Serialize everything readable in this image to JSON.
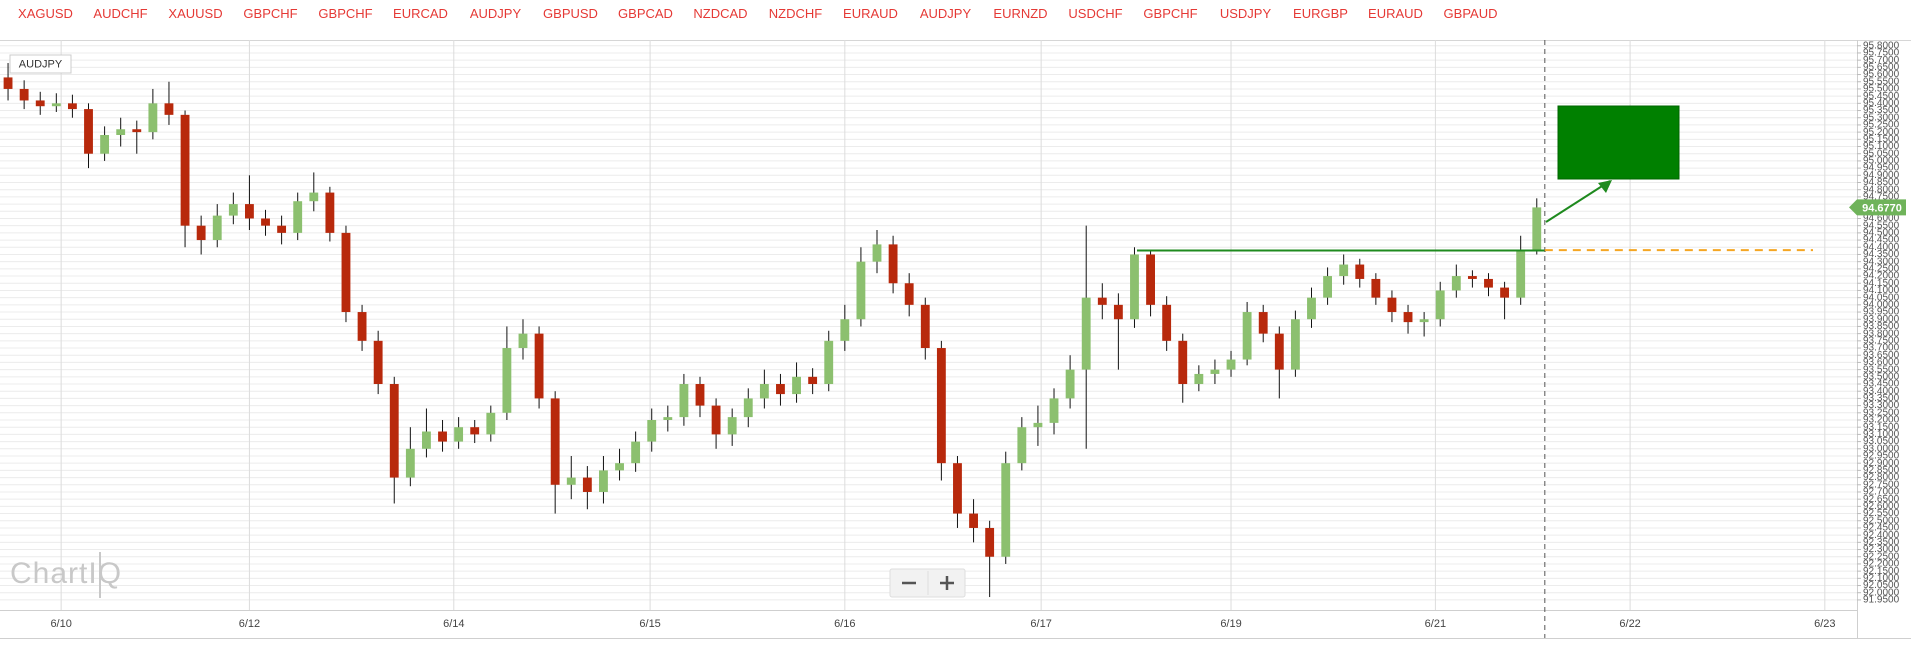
{
  "tabs": [
    "XAGUSD",
    "AUDCHF",
    "XAUUSD",
    "GBPCHF",
    "GBPCHF",
    "EURCAD",
    "AUDJPY",
    "GBPUSD",
    "GBPCAD",
    "NZDCAD",
    "NZDCHF",
    "EURAUD",
    "AUDJPY",
    "EURNZD",
    "USDCHF",
    "GBPCHF",
    "USDJPY",
    "EURGBP",
    "EURAUD",
    "GBPAUD"
  ],
  "symbol": "AUDJPY",
  "watermark": "ChartIQ",
  "chart_data": {
    "type": "candlestick",
    "up_color": "#8cc06f",
    "down_color": "#b8290c",
    "wick_color": "#111111",
    "open": [
      95.58,
      95.5,
      95.42,
      95.38,
      95.4,
      95.36,
      95.05,
      95.18,
      95.22,
      95.2,
      95.4,
      95.32,
      94.55,
      94.45,
      94.62,
      94.7,
      94.6,
      94.55,
      94.5,
      94.72,
      94.78,
      94.5,
      93.95,
      93.75,
      93.45,
      92.8,
      93.0,
      93.12,
      93.05,
      93.15,
      93.1,
      93.25,
      93.7,
      93.8,
      93.35,
      92.75,
      92.8,
      92.7,
      92.85,
      92.9,
      93.05,
      93.2,
      93.22,
      93.45,
      93.3,
      93.1,
      93.22,
      93.35,
      93.45,
      93.38,
      93.5,
      93.45,
      93.75,
      93.9,
      94.3,
      94.42,
      94.15,
      94.0,
      93.7,
      92.9,
      92.55,
      92.45,
      92.25,
      92.9,
      93.15,
      93.18,
      93.35,
      93.55,
      94.05,
      94.0,
      93.9,
      94.35,
      94.0,
      93.75,
      93.45,
      93.52,
      93.55,
      93.62,
      93.95,
      93.8,
      93.55,
      93.9,
      94.05,
      94.2,
      94.28,
      94.18,
      94.05,
      93.95,
      93.88,
      93.9,
      94.1,
      94.2,
      94.18,
      94.12,
      94.05,
      94.38
    ],
    "high": [
      95.68,
      95.56,
      95.48,
      95.47,
      95.46,
      95.4,
      95.24,
      95.3,
      95.28,
      95.5,
      95.55,
      95.35,
      94.62,
      94.7,
      94.78,
      94.9,
      94.66,
      94.62,
      94.78,
      94.92,
      94.82,
      94.55,
      94.0,
      93.82,
      93.5,
      93.15,
      93.28,
      93.2,
      93.22,
      93.2,
      93.3,
      93.85,
      93.9,
      93.85,
      93.4,
      92.95,
      92.88,
      92.95,
      93.0,
      93.12,
      93.28,
      93.3,
      93.52,
      93.5,
      93.35,
      93.28,
      93.42,
      93.55,
      93.52,
      93.6,
      93.56,
      93.82,
      94.0,
      94.4,
      94.52,
      94.48,
      94.22,
      94.05,
      93.75,
      92.95,
      92.65,
      92.5,
      92.98,
      93.22,
      93.3,
      93.42,
      93.65,
      94.55,
      94.15,
      94.08,
      94.4,
      94.38,
      94.06,
      93.8,
      93.58,
      93.62,
      93.68,
      94.02,
      94.0,
      93.85,
      93.96,
      94.12,
      94.26,
      94.35,
      94.32,
      94.22,
      94.1,
      94.0,
      93.95,
      94.16,
      94.28,
      94.24,
      94.22,
      94.16,
      94.48,
      94.74
    ],
    "low": [
      95.42,
      95.36,
      95.32,
      95.34,
      95.3,
      94.95,
      95.0,
      95.1,
      95.05,
      95.15,
      95.25,
      94.4,
      94.35,
      94.4,
      94.56,
      94.52,
      94.48,
      94.42,
      94.45,
      94.65,
      94.44,
      93.88,
      93.68,
      93.38,
      92.62,
      92.74,
      92.94,
      92.98,
      93.0,
      93.04,
      93.05,
      93.2,
      93.62,
      93.28,
      92.55,
      92.65,
      92.58,
      92.62,
      92.78,
      92.84,
      92.98,
      93.12,
      93.16,
      93.22,
      93.0,
      93.02,
      93.15,
      93.28,
      93.3,
      93.32,
      93.38,
      93.4,
      93.68,
      93.85,
      94.22,
      94.08,
      93.92,
      93.62,
      92.78,
      92.45,
      92.35,
      91.97,
      92.2,
      92.85,
      93.02,
      93.1,
      93.28,
      93.0,
      93.9,
      93.55,
      93.84,
      93.92,
      93.68,
      93.32,
      93.4,
      93.45,
      93.5,
      93.58,
      93.74,
      93.35,
      93.5,
      93.84,
      94.0,
      94.14,
      94.12,
      94.0,
      93.88,
      93.8,
      93.78,
      93.85,
      94.05,
      94.12,
      94.06,
      93.9,
      94.0,
      94.35
    ],
    "close": [
      95.5,
      95.42,
      95.38,
      95.4,
      95.36,
      95.05,
      95.18,
      95.22,
      95.2,
      95.4,
      95.32,
      94.55,
      94.45,
      94.62,
      94.7,
      94.6,
      94.55,
      94.5,
      94.72,
      94.78,
      94.5,
      93.95,
      93.75,
      93.45,
      92.8,
      93.0,
      93.12,
      93.05,
      93.15,
      93.1,
      93.25,
      93.7,
      93.8,
      93.35,
      92.75,
      92.8,
      92.7,
      92.85,
      92.9,
      93.05,
      93.2,
      93.22,
      93.45,
      93.3,
      93.1,
      93.22,
      93.35,
      93.45,
      93.38,
      93.5,
      93.45,
      93.75,
      93.9,
      94.3,
      94.42,
      94.15,
      94.0,
      93.7,
      92.9,
      92.55,
      92.45,
      92.25,
      92.9,
      93.15,
      93.18,
      93.35,
      93.55,
      94.05,
      94.0,
      93.9,
      94.35,
      94.0,
      93.75,
      93.45,
      93.52,
      93.55,
      93.62,
      93.95,
      93.8,
      93.55,
      93.9,
      94.05,
      94.2,
      94.28,
      94.18,
      94.05,
      93.95,
      93.88,
      93.9,
      94.1,
      94.2,
      94.18,
      94.12,
      94.05,
      94.38,
      94.677
    ],
    "current_price": {
      "value": 94.677,
      "label": "94.6770"
    },
    "reference_line": {
      "value": 94.38,
      "color": "#f5a623"
    },
    "xlim": [
      -0.5,
      114.9
    ],
    "xticks": [
      {
        "value": 3.3,
        "label": "6/10"
      },
      {
        "value": 15.0,
        "label": "6/12"
      },
      {
        "value": 27.7,
        "label": "6/14"
      },
      {
        "value": 39.9,
        "label": "6/15"
      },
      {
        "value": 52.0,
        "label": "6/16"
      },
      {
        "value": 64.2,
        "label": "6/17"
      },
      {
        "value": 76.0,
        "label": "6/19"
      },
      {
        "value": 88.7,
        "label": "6/21"
      },
      {
        "value": 100.8,
        "label": "6/22"
      },
      {
        "value": 112.9,
        "label": "6/23"
      }
    ],
    "ylim": [
      91.88,
      95.84
    ],
    "yticks": [
      {
        "value": 95.8,
        "label": "95.8000"
      },
      {
        "value": 95.75,
        "label": "95.7500"
      },
      {
        "value": 95.7,
        "label": "95.7000"
      },
      {
        "value": 95.65,
        "label": "95.6500"
      },
      {
        "value": 95.6,
        "label": "95.6000"
      },
      {
        "value": 95.55,
        "label": "95.5500"
      },
      {
        "value": 95.5,
        "label": "95.5000"
      },
      {
        "value": 95.45,
        "label": "95.4500"
      },
      {
        "value": 95.4,
        "label": "95.4000"
      },
      {
        "value": 95.35,
        "label": "95.3500"
      },
      {
        "value": 95.3,
        "label": "95.3000"
      },
      {
        "value": 95.25,
        "label": "95.2500"
      },
      {
        "value": 95.2,
        "label": "95.2000"
      },
      {
        "value": 95.15,
        "label": "95.1500"
      },
      {
        "value": 95.1,
        "label": "95.1000"
      },
      {
        "value": 95.05,
        "label": "95.0500"
      },
      {
        "value": 95,
        "label": "95.0000"
      },
      {
        "value": 94.95,
        "label": "94.9500"
      },
      {
        "value": 94.9,
        "label": "94.9000"
      },
      {
        "value": 94.85,
        "label": "94.8500"
      },
      {
        "value": 94.8,
        "label": "94.8000"
      },
      {
        "value": 94.75,
        "label": "94.7500"
      },
      {
        "value": 94.7,
        "label": "94.7000"
      },
      {
        "value": 94.65,
        "label": "94.6500"
      },
      {
        "value": 94.6,
        "label": "94.6000"
      },
      {
        "value": 94.55,
        "label": "94.5500"
      },
      {
        "value": 94.5,
        "label": "94.5000"
      },
      {
        "value": 94.45,
        "label": "94.4500"
      },
      {
        "value": 94.4,
        "label": "94.4000"
      },
      {
        "value": 94.35,
        "label": "94.3500"
      },
      {
        "value": 94.3,
        "label": "94.3000"
      },
      {
        "value": 94.25,
        "label": "94.2500"
      },
      {
        "value": 94.2,
        "label": "94.2000"
      },
      {
        "value": 94.15,
        "label": "94.1500"
      },
      {
        "value": 94.1,
        "label": "94.1000"
      },
      {
        "value": 94.05,
        "label": "94.0500"
      },
      {
        "value": 94,
        "label": "94.0000"
      },
      {
        "value": 93.95,
        "label": "93.9500"
      },
      {
        "value": 93.9,
        "label": "93.9000"
      },
      {
        "value": 93.85,
        "label": "93.8500"
      },
      {
        "value": 93.8,
        "label": "93.8000"
      },
      {
        "value": 93.75,
        "label": "93.7500"
      },
      {
        "value": 93.7,
        "label": "93.7000"
      },
      {
        "value": 93.65,
        "label": "93.6500"
      },
      {
        "value": 93.6,
        "label": "93.6000"
      },
      {
        "value": 93.55,
        "label": "93.5500"
      },
      {
        "value": 93.5,
        "label": "93.5000"
      },
      {
        "value": 93.45,
        "label": "93.4500"
      },
      {
        "value": 93.4,
        "label": "93.4000"
      },
      {
        "value": 93.35,
        "label": "93.3500"
      },
      {
        "value": 93.3,
        "label": "93.3000"
      },
      {
        "value": 93.25,
        "label": "93.2500"
      },
      {
        "value": 93.2,
        "label": "93.2000"
      },
      {
        "value": 93.15,
        "label": "93.1500"
      },
      {
        "value": 93.1,
        "label": "93.1000"
      },
      {
        "value": 93.05,
        "label": "93.0500"
      },
      {
        "value": 93,
        "label": "93.0000"
      },
      {
        "value": 92.95,
        "label": "92.9500"
      },
      {
        "value": 92.9,
        "label": "92.9000"
      },
      {
        "value": 92.85,
        "label": "92.8500"
      },
      {
        "value": 92.8,
        "label": "92.8000"
      },
      {
        "value": 92.75,
        "label": "92.7500"
      },
      {
        "value": 92.7,
        "label": "92.7000"
      },
      {
        "value": 92.65,
        "label": "92.6500"
      },
      {
        "value": 92.6,
        "label": "92.6000"
      },
      {
        "value": 92.55,
        "label": "92.5500"
      },
      {
        "value": 92.5,
        "label": "92.5000"
      },
      {
        "value": 92.45,
        "label": "92.4500"
      },
      {
        "value": 92.4,
        "label": "92.4000"
      },
      {
        "value": 92.35,
        "label": "92.3500"
      },
      {
        "value": 92.3,
        "label": "92.3000"
      },
      {
        "value": 92.25,
        "label": "92.2500"
      },
      {
        "value": 92.2,
        "label": "92.2000"
      },
      {
        "value": 92.15,
        "label": "92.1500"
      },
      {
        "value": 92.1,
        "label": "92.1000"
      },
      {
        "value": 92.05,
        "label": "92.0500"
      },
      {
        "value": 92,
        "label": "92.0000"
      },
      {
        "value": 91.95,
        "label": "91.9500"
      }
    ],
    "grid": true
  }
}
